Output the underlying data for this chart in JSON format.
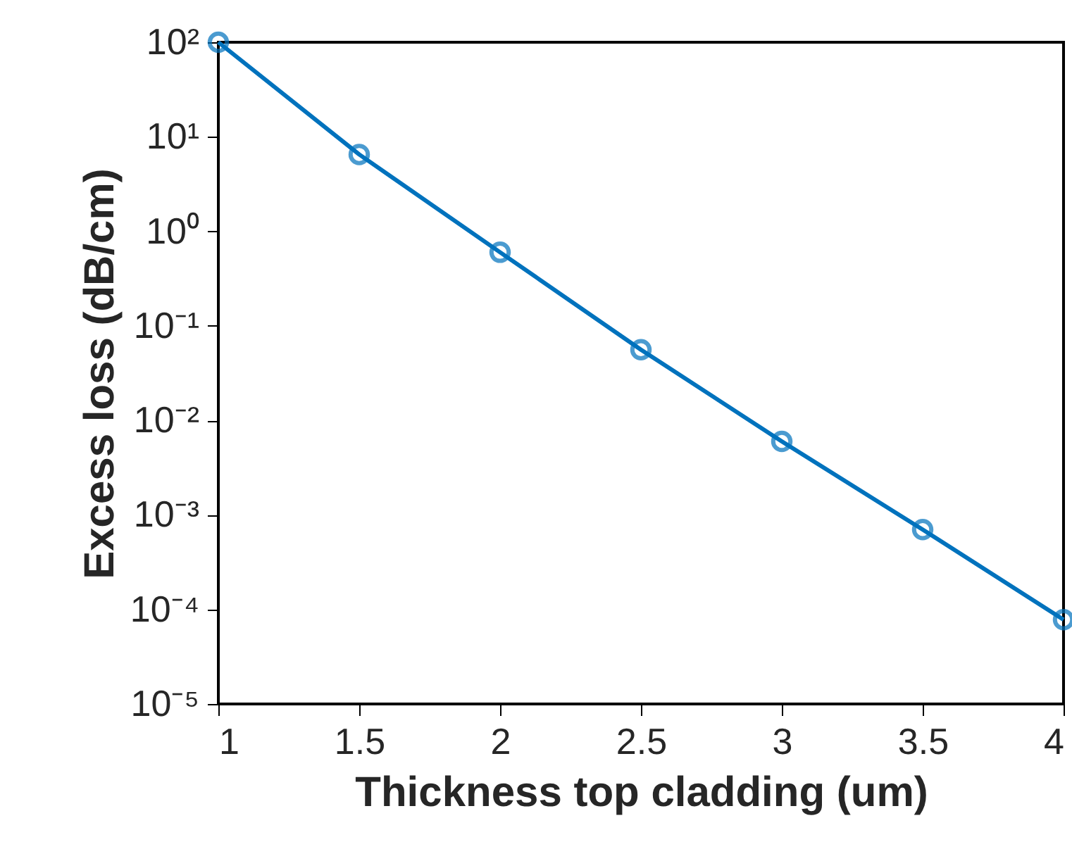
{
  "chart_data": {
    "type": "line",
    "xlabel": "Thickness top cladding (um)",
    "ylabel": "Excess loss (dB/cm)",
    "x": [
      1,
      1.5,
      2,
      2.5,
      3,
      3.5,
      4
    ],
    "series": [
      {
        "color": "#0072bd",
        "values": [
          100,
          6.5,
          0.6,
          0.056,
          0.006,
          0.0007,
          7.8e-05
        ]
      }
    ],
    "log": "y",
    "marker": "circle",
    "line_style": "solid",
    "grid": false,
    "legend": false,
    "xlim": [
      1,
      4
    ],
    "xticks": [
      1,
      1.5,
      2,
      2.5,
      3,
      3.5,
      4
    ],
    "ylim": [
      1e-05,
      100
    ],
    "yticks": [
      {
        "value": 1e-05,
        "label": "10⁻⁵"
      },
      {
        "value": 0.0001,
        "label": "10⁻⁴"
      },
      {
        "value": 0.001,
        "label": "10⁻³"
      },
      {
        "value": 0.01,
        "label": "10⁻²"
      },
      {
        "value": 0.1,
        "label": "10⁻¹"
      },
      {
        "value": 1,
        "label": "10⁰"
      },
      {
        "value": 10,
        "label": "10¹"
      },
      {
        "value": 100,
        "label": "10²"
      }
    ]
  }
}
